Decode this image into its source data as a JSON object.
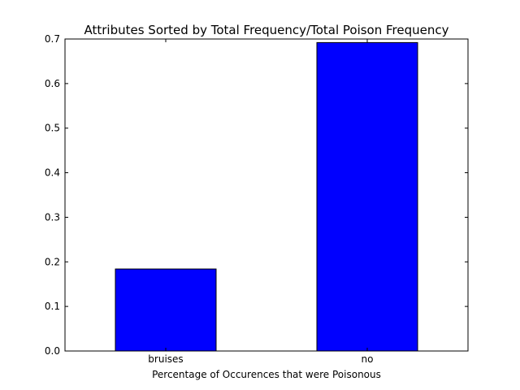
{
  "chart_data": {
    "type": "bar",
    "title": "Attributes Sorted by Total Frequency/Total Poison Frequency",
    "xlabel": "Percentage of Occurences that were Poisonous",
    "ylabel": "",
    "categories": [
      "bruises",
      "no"
    ],
    "values": [
      0.184,
      0.692
    ],
    "ylim": [
      0,
      0.7
    ],
    "yticks": [
      "0.0",
      "0.1",
      "0.2",
      "0.3",
      "0.4",
      "0.5",
      "0.6",
      "0.7"
    ],
    "bar_color": "#0000ff",
    "edge_color": "#000000",
    "grid": false
  }
}
